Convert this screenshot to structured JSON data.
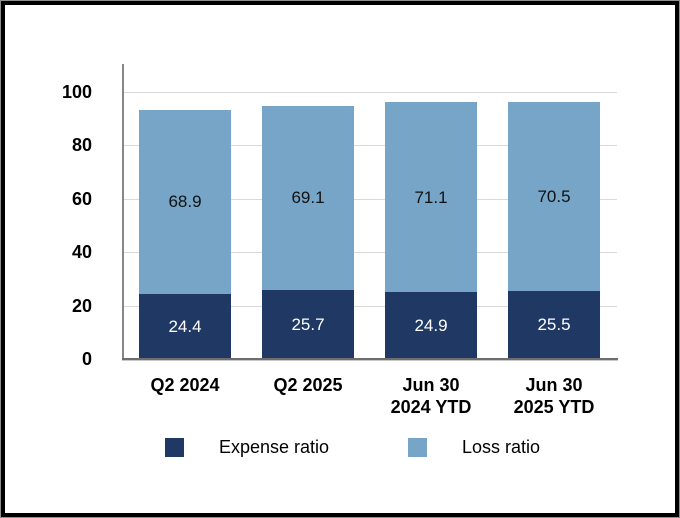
{
  "chart_data": {
    "type": "bar",
    "variant": "stacked-column",
    "categories": [
      "Q2 2024",
      "Q2 2025",
      "Jun 30\n2024 YTD",
      "Jun 30\n2025 YTD"
    ],
    "series": [
      {
        "name": "Expense ratio",
        "values": [
          24.4,
          25.7,
          24.9,
          25.5
        ],
        "color": "#1F3864",
        "value_label_color": "#FFFFFF"
      },
      {
        "name": "Loss ratio",
        "values": [
          68.9,
          69.1,
          71.1,
          70.5
        ],
        "color": "#76A5C7",
        "value_label_color": "#111111"
      }
    ],
    "y_axis": {
      "min": 0,
      "max": 110,
      "tick_interval": 20,
      "tick_labels": [
        "0",
        "20",
        "40",
        "60",
        "80",
        "100"
      ]
    },
    "grid": true,
    "legend_position": "bottom",
    "legend": [
      "Expense ratio",
      "Loss ratio"
    ],
    "colors": {
      "gridline": "#D9D9D9",
      "axis_line": "#878787",
      "baseline": "#6E6E6E",
      "tick_label": "#000000",
      "category_label": "#000000",
      "frame_border": "#000000",
      "background": "#FFFFFF"
    }
  }
}
